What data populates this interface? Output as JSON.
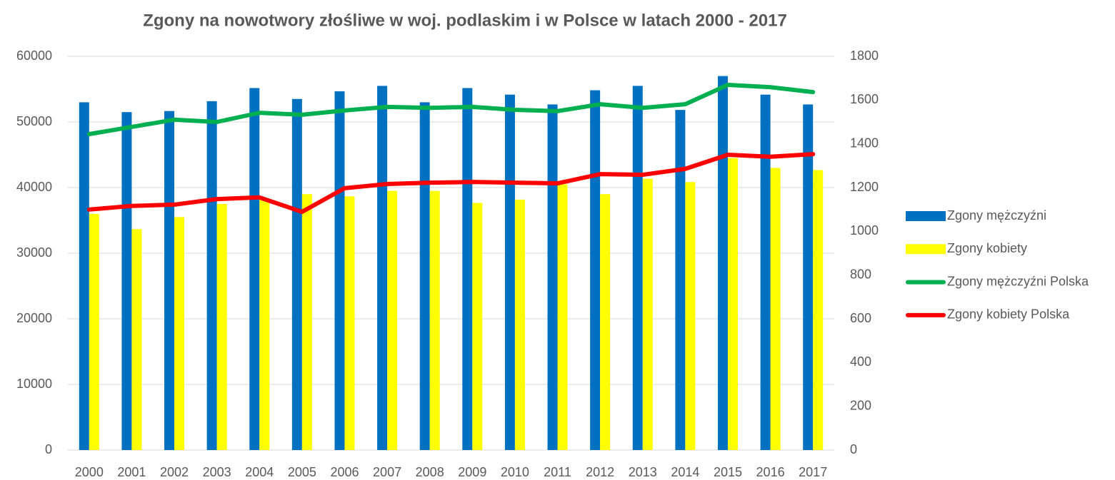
{
  "chart_data": {
    "type": "bar-line",
    "title": "Zgony na nowotwory złośliwe w woj. podlaskim i w Polsce w latach 2000 - 2017",
    "categories": [
      "2000",
      "2001",
      "2002",
      "2003",
      "2004",
      "2005",
      "2006",
      "2007",
      "2008",
      "2009",
      "2010",
      "2011",
      "2012",
      "2013",
      "2014",
      "2015",
      "2016",
      "2017"
    ],
    "series": [
      {
        "name": "Zgony mężczyźni",
        "type": "bar",
        "axis": "y2",
        "color": "#0070c0",
        "values": [
          1590,
          1545,
          1550,
          1595,
          1655,
          1605,
          1640,
          1665,
          1590,
          1655,
          1625,
          1580,
          1645,
          1665,
          1555,
          1710,
          1625,
          1580
        ]
      },
      {
        "name": "Zgony kobiety",
        "type": "bar",
        "axis": "y2",
        "color": "#ffff00",
        "values": [
          1080,
          1010,
          1065,
          1125,
          1150,
          1170,
          1160,
          1185,
          1185,
          1130,
          1145,
          1215,
          1170,
          1240,
          1225,
          1335,
          1290,
          1280
        ]
      },
      {
        "name": "Zgony mężczyźni Polska",
        "type": "line",
        "axis": "y",
        "color": "#00b050",
        "values": [
          48150,
          49250,
          50350,
          50000,
          51400,
          51100,
          51750,
          52300,
          52150,
          52300,
          51850,
          51650,
          52700,
          52150,
          52700,
          55650,
          55300,
          54550
        ]
      },
      {
        "name": "Zgony kobiety Polska",
        "type": "line",
        "axis": "y",
        "color": "#ff0000",
        "values": [
          36650,
          37200,
          37400,
          38250,
          38500,
          36300,
          39900,
          40550,
          40750,
          40850,
          40750,
          40650,
          42050,
          41950,
          42850,
          45000,
          44700,
          45100
        ]
      }
    ],
    "ylim": [
      0,
      60000
    ],
    "yticks": [
      0,
      10000,
      20000,
      30000,
      40000,
      50000,
      60000
    ],
    "y2lim": [
      0,
      1800
    ],
    "y2ticks": [
      0,
      200,
      400,
      600,
      800,
      1000,
      1200,
      1400,
      1600,
      1800
    ],
    "grid": true,
    "legend": "right"
  }
}
